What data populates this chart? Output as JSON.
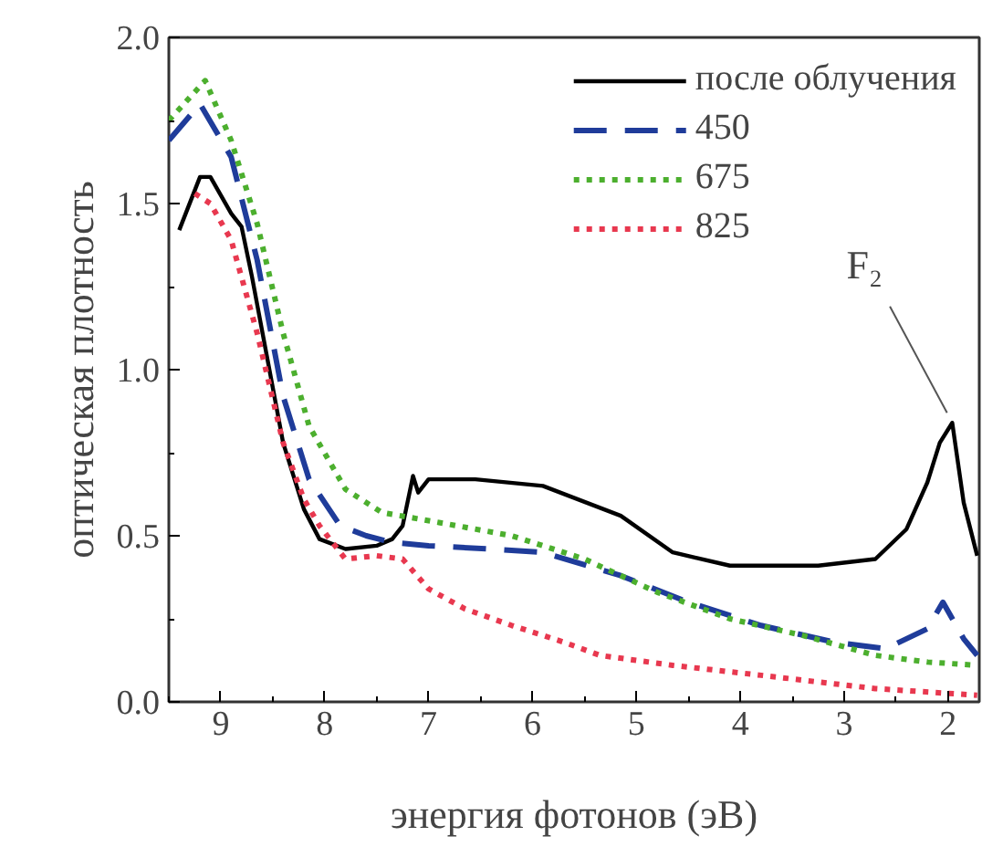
{
  "chart_data": {
    "type": "line",
    "xlabel": "энергия фотонов (эВ)",
    "ylabel": "оптическая плотность",
    "xlim": [
      9.5,
      1.7
    ],
    "ylim": [
      0,
      2.0
    ],
    "xticks": [
      9,
      8,
      7,
      6,
      5,
      4,
      3,
      2
    ],
    "yticks": [
      {
        "value": 0,
        "label": "0.0"
      },
      {
        "value": 0.5,
        "label": "0.5"
      },
      {
        "value": 1.0,
        "label": "1.0"
      },
      {
        "value": 1.5,
        "label": "1.5"
      },
      {
        "value": 2.0,
        "label": "2.0"
      }
    ],
    "grid": false,
    "legend": "top right",
    "marker": "none",
    "annotations": [
      {
        "text": "F₂",
        "x": 1.96,
        "y": 0.84
      }
    ],
    "series": [
      {
        "name": "после облучения",
        "color": "#000000",
        "line_style": "solid",
        "x": [
          9.4,
          9.2,
          9.1,
          8.9,
          8.8,
          8.7,
          8.55,
          8.4,
          8.2,
          8.05,
          7.8,
          7.5,
          7.35,
          7.25,
          7.15,
          7.1,
          7.0,
          6.55,
          5.9,
          5.15,
          4.65,
          4.1,
          3.25,
          2.7,
          2.4,
          2.2,
          2.08,
          1.96,
          1.85,
          1.72
        ],
        "values": [
          1.42,
          1.58,
          1.58,
          1.47,
          1.43,
          1.28,
          1.03,
          0.78,
          0.58,
          0.49,
          0.46,
          0.47,
          0.49,
          0.53,
          0.68,
          0.63,
          0.67,
          0.67,
          0.65,
          0.56,
          0.45,
          0.41,
          0.41,
          0.43,
          0.52,
          0.66,
          0.78,
          0.84,
          0.6,
          0.44
        ]
      },
      {
        "name": "450",
        "color": "#1f3c9a",
        "line_style": "dashed",
        "x": [
          9.5,
          9.2,
          8.9,
          8.65,
          8.4,
          8.15,
          7.85,
          7.6,
          7.35,
          7.0,
          6.4,
          5.9,
          5.15,
          4.5,
          3.8,
          3.1,
          2.6,
          2.2,
          2.05,
          1.85,
          1.72
        ],
        "values": [
          1.69,
          1.8,
          1.64,
          1.33,
          0.92,
          0.67,
          0.53,
          0.5,
          0.48,
          0.47,
          0.46,
          0.45,
          0.38,
          0.3,
          0.23,
          0.18,
          0.16,
          0.22,
          0.3,
          0.19,
          0.14
        ]
      },
      {
        "name": "675",
        "color": "#4caf2e",
        "line_style": "dotted",
        "x": [
          9.5,
          9.15,
          8.9,
          8.65,
          8.4,
          8.15,
          7.8,
          7.45,
          6.9,
          6.2,
          5.5,
          4.8,
          4.1,
          3.4,
          2.7,
          2.2,
          1.72
        ],
        "values": [
          1.75,
          1.87,
          1.69,
          1.44,
          1.11,
          0.83,
          0.64,
          0.57,
          0.54,
          0.5,
          0.43,
          0.33,
          0.25,
          0.2,
          0.14,
          0.12,
          0.11
        ]
      },
      {
        "name": "825",
        "color": "#e8384f",
        "line_style": "dotted",
        "x": [
          9.25,
          9.1,
          8.9,
          8.65,
          8.4,
          8.2,
          8.05,
          7.8,
          7.5,
          7.25,
          7.0,
          6.65,
          6.2,
          5.7,
          5.35,
          4.65,
          3.8,
          2.7,
          1.72
        ],
        "values": [
          1.53,
          1.5,
          1.39,
          1.11,
          0.78,
          0.61,
          0.53,
          0.43,
          0.44,
          0.43,
          0.34,
          0.28,
          0.23,
          0.18,
          0.14,
          0.11,
          0.08,
          0.04,
          0.02
        ]
      }
    ]
  }
}
